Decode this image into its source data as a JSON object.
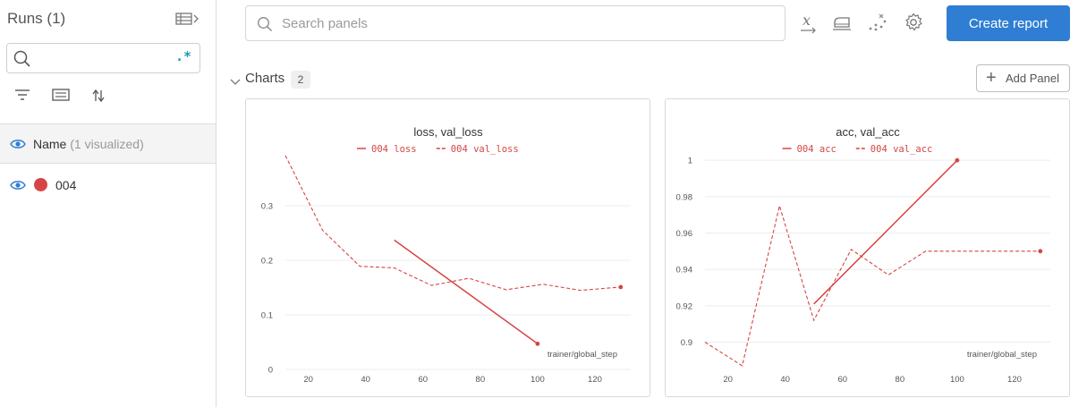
{
  "sidebar": {
    "runs_title": "Runs (1)",
    "regex_label": ".*",
    "name_header": {
      "label": "Name",
      "sub": "(1 visualized)"
    },
    "runs": [
      {
        "name": "004",
        "color": "#d64545"
      }
    ]
  },
  "toolbar": {
    "search_placeholder": "Search panels",
    "icons": [
      "x-axis-icon",
      "smoothing-icon",
      "outliers-icon",
      "settings-icon"
    ],
    "create_report_label": "Create report"
  },
  "section": {
    "title": "Charts",
    "count": "2",
    "add_panel_label": "Add Panel"
  },
  "colors": {
    "accent": "#2f7ed3",
    "run": "#d64545"
  },
  "chart_data": [
    {
      "type": "line",
      "title": "loss, val_loss",
      "xlabel": "trainer/global_step",
      "xlim": [
        12,
        130
      ],
      "ylim": [
        0,
        0.4
      ],
      "x_ticks": [
        20,
        40,
        60,
        80,
        100,
        120
      ],
      "y_ticks": [
        0,
        0.1,
        0.2,
        0.3
      ],
      "legend_position": "top",
      "series": [
        {
          "name": "004 loss",
          "style": "solid",
          "color": "#d64545",
          "x": [
            50,
            100
          ],
          "y": [
            0.237,
            0.047
          ]
        },
        {
          "name": "004 val_loss",
          "style": "dashed",
          "color": "#d64545",
          "x": [
            12,
            25,
            38,
            50,
            63,
            76,
            89,
            102,
            115,
            129
          ],
          "y": [
            0.392,
            0.255,
            0.189,
            0.186,
            0.154,
            0.167,
            0.146,
            0.156,
            0.145,
            0.151
          ]
        }
      ]
    },
    {
      "type": "line",
      "title": "acc, val_acc",
      "xlabel": "trainer/global_step",
      "xlim": [
        12,
        130
      ],
      "ylim": [
        0.885,
        1.005
      ],
      "x_ticks": [
        20,
        40,
        60,
        80,
        100,
        120
      ],
      "y_ticks": [
        0.9,
        0.92,
        0.94,
        0.96,
        0.98,
        1
      ],
      "legend_position": "top",
      "series": [
        {
          "name": "004 acc",
          "style": "solid",
          "color": "#d64545",
          "x": [
            50,
            100
          ],
          "y": [
            0.921,
            1.0
          ]
        },
        {
          "name": "004 val_acc",
          "style": "dashed",
          "color": "#d64545",
          "x": [
            12,
            25,
            38,
            50,
            63,
            76,
            89,
            102,
            115,
            129
          ],
          "y": [
            0.9,
            0.887,
            0.975,
            0.912,
            0.951,
            0.937,
            0.95,
            0.95,
            0.95,
            0.95
          ]
        }
      ]
    }
  ]
}
